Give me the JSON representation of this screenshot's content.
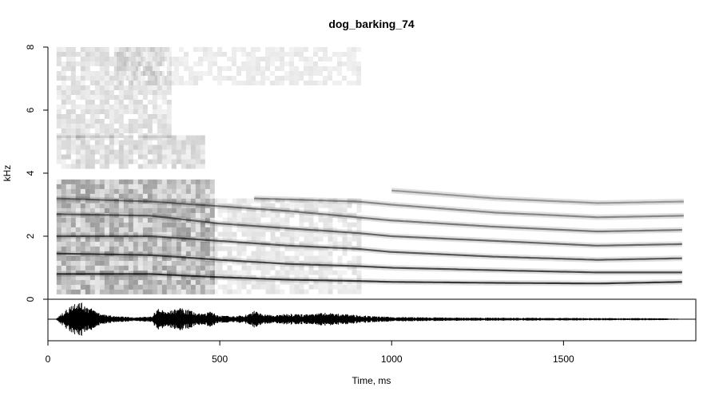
{
  "chart_data": {
    "type": "heatmap",
    "title": "dog_barking_74",
    "xlabel": "Time, ms",
    "ylabel": "kHz",
    "xlim": [
      0,
      1885
    ],
    "ylim": [
      0,
      8
    ],
    "x_ticks": [
      {
        "value": 0,
        "label": "0"
      },
      {
        "value": 500,
        "label": "500"
      },
      {
        "value": 1000,
        "label": "1000"
      },
      {
        "value": 1500,
        "label": "1500"
      }
    ],
    "y_ticks": [
      {
        "value": 0,
        "label": "0"
      },
      {
        "value": 2,
        "label": "2"
      },
      {
        "value": 4,
        "label": "4"
      },
      {
        "value": 6,
        "label": "6"
      },
      {
        "value": 8,
        "label": "8"
      }
    ],
    "signal_duration_ms": [
      25,
      1850
    ],
    "colormap": {
      "low": "#ffffff",
      "high": "#000000"
    },
    "harmonic_bands": [
      {
        "name": "h1",
        "points": [
          [
            25,
            0.8
          ],
          [
            300,
            0.8
          ],
          [
            500,
            0.7
          ],
          [
            700,
            0.62
          ],
          [
            900,
            0.58
          ],
          [
            1000,
            0.55
          ],
          [
            1300,
            0.52
          ],
          [
            1600,
            0.5
          ],
          [
            1850,
            0.55
          ]
        ]
      },
      {
        "name": "h2",
        "points": [
          [
            25,
            1.45
          ],
          [
            300,
            1.4
          ],
          [
            500,
            1.25
          ],
          [
            700,
            1.12
          ],
          [
            900,
            1.05
          ],
          [
            1000,
            1.0
          ],
          [
            1300,
            0.92
          ],
          [
            1600,
            0.85
          ],
          [
            1850,
            0.85
          ]
        ]
      },
      {
        "name": "h3",
        "points": [
          [
            25,
            2.0
          ],
          [
            300,
            2.0
          ],
          [
            500,
            1.85
          ],
          [
            700,
            1.7
          ],
          [
            900,
            1.6
          ],
          [
            1000,
            1.5
          ],
          [
            1300,
            1.35
          ],
          [
            1600,
            1.25
          ],
          [
            1850,
            1.3
          ]
        ]
      },
      {
        "name": "h4",
        "points": [
          [
            25,
            2.7
          ],
          [
            300,
            2.65
          ],
          [
            500,
            2.4
          ],
          [
            700,
            2.25
          ],
          [
            900,
            2.1
          ],
          [
            1000,
            2.0
          ],
          [
            1300,
            1.85
          ],
          [
            1600,
            1.7
          ],
          [
            1850,
            1.75
          ]
        ]
      },
      {
        "name": "h5",
        "points": [
          [
            25,
            3.2
          ],
          [
            300,
            3.1
          ],
          [
            500,
            2.95
          ],
          [
            700,
            2.8
          ],
          [
            900,
            2.6
          ],
          [
            1000,
            2.5
          ],
          [
            1300,
            2.3
          ],
          [
            1600,
            2.15
          ],
          [
            1850,
            2.2
          ]
        ]
      },
      {
        "name": "h6",
        "points": [
          [
            600,
            3.2
          ],
          [
            900,
            3.1
          ],
          [
            1000,
            3.0
          ],
          [
            1300,
            2.75
          ],
          [
            1600,
            2.6
          ],
          [
            1850,
            2.65
          ]
        ]
      },
      {
        "name": "h7",
        "points": [
          [
            1000,
            3.45
          ],
          [
            1300,
            3.2
          ],
          [
            1600,
            3.05
          ],
          [
            1850,
            3.1
          ]
        ]
      }
    ],
    "noise_regions": [
      {
        "t": [
          25,
          480
        ],
        "f": [
          0.2,
          3.8
        ],
        "intensity": 0.32
      },
      {
        "t": [
          25,
          450
        ],
        "f": [
          4.2,
          5.2
        ],
        "intensity": 0.16
      },
      {
        "t": [
          25,
          350
        ],
        "f": [
          5.2,
          8.0
        ],
        "intensity": 0.13
      },
      {
        "t": [
          480,
          900
        ],
        "f": [
          0.2,
          3.2
        ],
        "intensity": 0.1
      },
      {
        "t": [
          200,
          900
        ],
        "f": [
          6.8,
          8.0
        ],
        "intensity": 0.08
      }
    ],
    "waveform_envelope": {
      "t": [
        25,
        60,
        80,
        100,
        130,
        160,
        200,
        260,
        300,
        320,
        350,
        380,
        410,
        440,
        470,
        500,
        540,
        580,
        600,
        620,
        660,
        700,
        760,
        800,
        880,
        950,
        1000,
        1100,
        1200,
        1300,
        1400,
        1500,
        1600,
        1700,
        1780,
        1850
      ],
      "amp": [
        0.05,
        0.6,
        0.95,
        0.85,
        0.55,
        0.25,
        0.15,
        0.1,
        0.15,
        0.55,
        0.4,
        0.6,
        0.5,
        0.3,
        0.4,
        0.2,
        0.15,
        0.25,
        0.45,
        0.3,
        0.2,
        0.3,
        0.25,
        0.35,
        0.25,
        0.15,
        0.12,
        0.1,
        0.08,
        0.08,
        0.07,
        0.07,
        0.06,
        0.06,
        0.05,
        0.02
      ]
    }
  }
}
